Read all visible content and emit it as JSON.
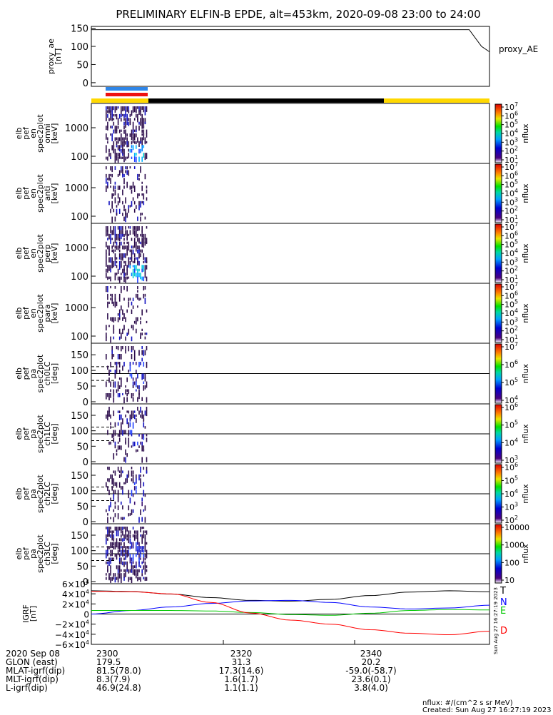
{
  "title": "PRELIMINARY ELFIN-B EPDE, alt=453km, 2020-09-08 23:00 to 24:00",
  "colors": {
    "frame": "#000000",
    "series_T": "#000000",
    "series_N": "#0000ff",
    "series_E": "#00c800",
    "series_D": "#ff0000",
    "bar_blue": "#2f86e8",
    "bar_red": "#ee1111",
    "orbit_yellow": "#ffd800",
    "orbit_black": "#000000",
    "spec_dark": "#2a0a4a"
  },
  "chart_data": [
    {
      "type": "line",
      "panel": "proxy_ae",
      "ylabel": "proxy_ae\n[nT]",
      "ylim": [
        -10,
        155
      ],
      "yticks": [
        0,
        50,
        100,
        150
      ],
      "legend": [
        "proxy_AE"
      ],
      "series": [
        {
          "name": "proxy_AE",
          "x": [
            0,
            0.949,
            0.98,
            1.0
          ],
          "y": [
            146,
            146,
            100,
            85
          ]
        }
      ]
    },
    {
      "type": "heatmap",
      "panel": "omni",
      "ylabel": "elb\npef\nen\nspec2plot\nomni\n[keV]",
      "yscale": "log",
      "yticks": [
        "1000",
        "100"
      ],
      "colorbar": {
        "label": "nflux",
        "ticks": [
          "10^7",
          "10^6",
          "10^5",
          "10^4",
          "10^3",
          "10^2",
          "10^1"
        ]
      }
    },
    {
      "type": "heatmap",
      "panel": "anti",
      "ylabel": "elb\npef\nen\nspec2plot\nanti\n[keV]",
      "yscale": "log",
      "yticks": [
        "1000",
        "100"
      ],
      "colorbar": {
        "label": "nflux",
        "ticks": [
          "10^7",
          "10^6",
          "10^5",
          "10^4",
          "10^3",
          "10^2",
          "10^1"
        ]
      }
    },
    {
      "type": "heatmap",
      "panel": "perp",
      "ylabel": "elb\npef\nen\nspec2plot\nperp\n[keV]",
      "yscale": "log",
      "yticks": [
        "1000",
        "100"
      ],
      "colorbar": {
        "label": "nflux",
        "ticks": [
          "10^7",
          "10^6",
          "10^5",
          "10^4",
          "10^3",
          "10^2",
          "10^1"
        ]
      }
    },
    {
      "type": "heatmap",
      "panel": "para",
      "ylabel": "elb\npef\nen\nspec2plot\npara\n[keV]",
      "yscale": "log",
      "yticks": [
        "1000",
        "100"
      ],
      "colorbar": {
        "label": "nflux",
        "ticks": [
          "10^7",
          "10^6",
          "10^5",
          "10^4",
          "10^3",
          "10^2",
          "10^1"
        ]
      }
    },
    {
      "type": "heatmap",
      "panel": "ch0LC",
      "ylabel": "elb\npef\npa\nspec2plot\nch0LC\n[deg]",
      "ylim": [
        0,
        180
      ],
      "yticks": [
        "150",
        "100",
        "50",
        "0"
      ],
      "colorbar": {
        "label": "nflux",
        "ticks": [
          "10^7",
          "10^6",
          "10^5",
          "10^4"
        ]
      }
    },
    {
      "type": "heatmap",
      "panel": "ch1LC",
      "ylabel": "elb\npef\npa\nspec2plot\nch1LC\n[deg]",
      "ylim": [
        0,
        180
      ],
      "yticks": [
        "150",
        "100",
        "50",
        "0"
      ],
      "colorbar": {
        "label": "nflux",
        "ticks": [
          "10^6",
          "10^5",
          "10^4",
          "10^3"
        ]
      }
    },
    {
      "type": "heatmap",
      "panel": "ch2LC",
      "ylabel": "elb\npef\npa\nspec2plot\nch2LC\n[deg]",
      "ylim": [
        0,
        180
      ],
      "yticks": [
        "150",
        "100",
        "50",
        "0"
      ],
      "colorbar": {
        "label": "nflux",
        "ticks": [
          "10^6",
          "10^5",
          "10^4",
          "10^3",
          "10^2"
        ]
      }
    },
    {
      "type": "heatmap",
      "panel": "ch3LC",
      "ylabel": "elb\npef\npa\nspec2plot\nch3LC\n[deg]",
      "ylim": [
        0,
        180
      ],
      "yticks": [
        "150",
        "100",
        "50",
        "0"
      ],
      "colorbar": {
        "label": "nflux",
        "ticks": [
          "10000",
          "1000",
          "100",
          "10"
        ]
      }
    },
    {
      "type": "line",
      "panel": "igrf",
      "ylabel": "IGRF\n[nT]",
      "ylim": [
        -60000,
        60000
      ],
      "yticks": [
        "6×10^4",
        "4×10^4",
        "2×10^4",
        "0",
        "−2×10^4",
        "−4×10^4",
        "−6×10^4"
      ],
      "legend": [
        "T",
        "N",
        "E",
        "D"
      ],
      "x": [
        0,
        0.1,
        0.2,
        0.3,
        0.4,
        0.5,
        0.6,
        0.7,
        0.8,
        0.9,
        1.0
      ],
      "series": [
        {
          "name": "T",
          "y": [
            46000,
            44500,
            39500,
            32500,
            27000,
            25500,
            29000,
            36500,
            43500,
            46000,
            44000
          ]
        },
        {
          "name": "N",
          "y": [
            0,
            7000,
            14000,
            21000,
            26000,
            27000,
            23000,
            14000,
            10000,
            12000,
            17500
          ]
        },
        {
          "name": "E",
          "y": [
            7000,
            7000,
            7000,
            6000,
            3000,
            -1000,
            -2500,
            1500,
            7000,
            9000,
            8000
          ]
        },
        {
          "name": "D",
          "y": [
            45000,
            44000,
            40000,
            23000,
            2000,
            -12000,
            -20000,
            -31000,
            -38000,
            -41000,
            -34000
          ]
        }
      ]
    }
  ],
  "xaxis": {
    "tick_labels": [
      "2300",
      "2320",
      "2340"
    ],
    "rows": [
      {
        "label": "2020 Sep 08",
        "values": [
          "2300",
          "2320",
          "2340"
        ]
      },
      {
        "label": "GLON (east)",
        "values": [
          "179.5",
          "31.3",
          "20.2"
        ]
      },
      {
        "label": "MLAT-igrf(dip)",
        "values": [
          "81.5(78.0)",
          "17.3(14.6)",
          "-59.0(-58.7)"
        ]
      },
      {
        "label": "MLT-igrf(dip)",
        "values": [
          "8.3(7.9)",
          "1.6(1.7)",
          "23.6(0.1)"
        ]
      },
      {
        "label": "L-igrf(dip)",
        "values": [
          "46.9(24.8)",
          "1.1(1.1)",
          "3.8(4.0)"
        ]
      }
    ]
  },
  "footer": {
    "units": "nflux: #/(cm^2 s sr MeV)",
    "created": "Created: Sun Aug 27 16:27:19 2023",
    "side_stamp": "Sun Aug 27 16:27:19 2023"
  }
}
